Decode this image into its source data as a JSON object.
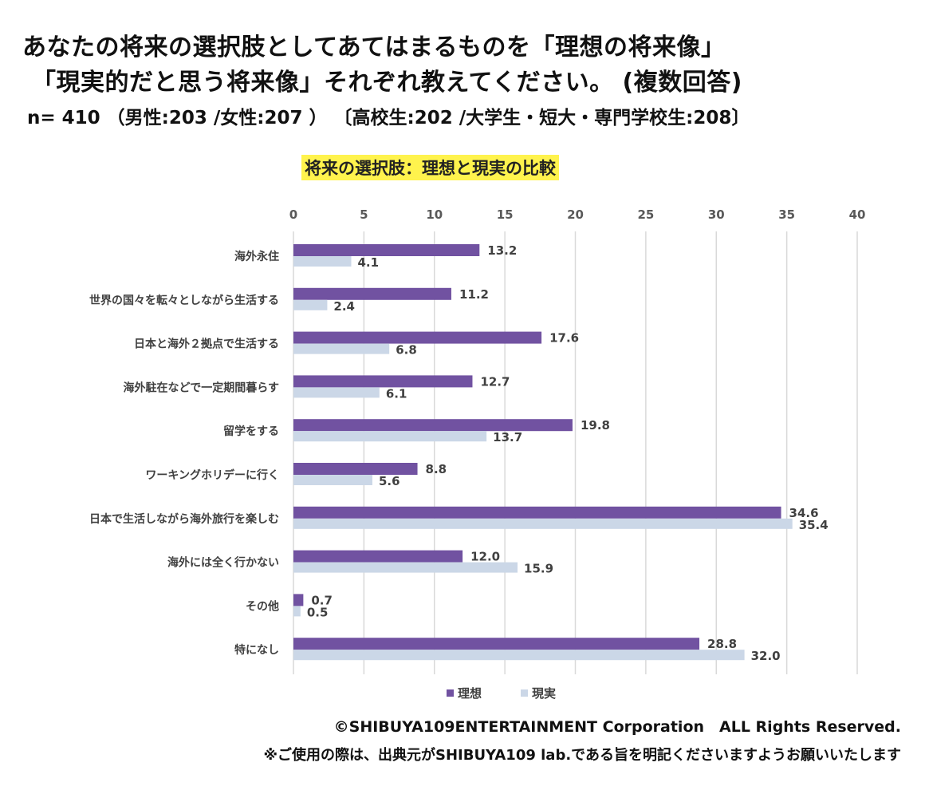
{
  "header": {
    "title_line1": "あなたの将来の選択肢としてあてはまるものを「理想の将来像」",
    "title_line2": "「現実的だと思う将来像」それぞれ教えてください。 (複数回答)",
    "sample": "n= 410 （男性:203 /女性:207 ） 〔高校生:202 /大学生・短大・専門学校生:208〕"
  },
  "chart_data": {
    "type": "bar",
    "orientation": "horizontal",
    "title": "将来の選択肢：理想と現実の比較",
    "xlim": [
      0,
      40
    ],
    "xticks": [
      0,
      5,
      10,
      15,
      20,
      25,
      30,
      35,
      40
    ],
    "grid": true,
    "legend_position": "bottom",
    "categories": [
      "海外永住",
      "世界の国々を転々としながら生活する",
      "日本と海外２拠点で生活する",
      "海外駐在などで一定期間暮らす",
      "留学をする",
      "ワーキングホリデーに行く",
      "日本で生活しながら海外旅行を楽しむ",
      "海外には全く行かない",
      "その他",
      "特になし"
    ],
    "series": [
      {
        "name": "理想",
        "color": "#7152a1",
        "values": [
          13.2,
          11.2,
          17.6,
          12.7,
          19.8,
          8.8,
          34.6,
          12.0,
          0.7,
          28.8
        ]
      },
      {
        "name": "現実",
        "color": "#cbd7e7",
        "values": [
          4.1,
          2.4,
          6.8,
          6.1,
          13.7,
          5.6,
          35.4,
          15.9,
          0.5,
          32.0
        ]
      }
    ]
  },
  "footer": {
    "copyright": "©SHIBUYA109ENTERTAINMENT Corporation　ALL Rights Reserved.",
    "note": "※ご使用の際は、出典元がSHIBUYA109 lab.である旨を明記くださいますようお願いいたします"
  }
}
